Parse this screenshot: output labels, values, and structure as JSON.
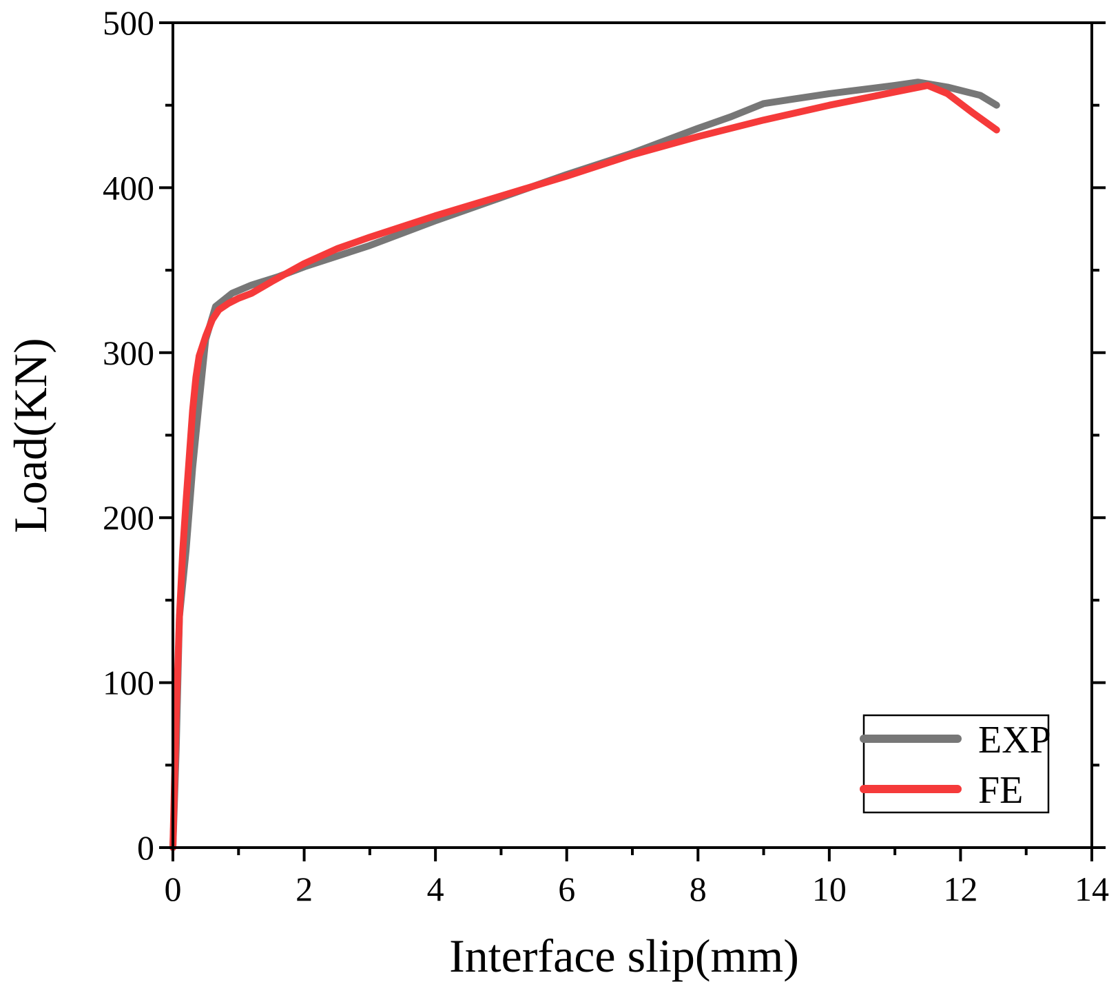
{
  "chart_data": {
    "type": "line",
    "title": "",
    "xlabel": "Interface slip(mm)",
    "ylabel": "Load(KN)",
    "xlim": [
      0,
      14
    ],
    "ylim": [
      0,
      500
    ],
    "xticks": [
      0,
      2,
      4,
      6,
      8,
      10,
      12,
      14
    ],
    "yticks": [
      0,
      100,
      200,
      300,
      400,
      500
    ],
    "grid": false,
    "legend_position": "bottom-right",
    "series": [
      {
        "name": "EXP",
        "color": "#777777",
        "x": [
          0,
          0.05,
          0.1,
          0.2,
          0.3,
          0.4,
          0.5,
          0.65,
          0.9,
          1.2,
          1.6,
          2.0,
          3.0,
          4.0,
          5.0,
          6.0,
          7.0,
          8.0,
          8.5,
          9.0,
          10.0,
          11.0,
          11.35,
          11.8,
          12.3,
          12.55
        ],
        "y": [
          0,
          60,
          140,
          180,
          230,
          270,
          308,
          328,
          336,
          341,
          346,
          352,
          365,
          380,
          394,
          408,
          421,
          436,
          443,
          451,
          457,
          462,
          464,
          461,
          456,
          450
        ]
      },
      {
        "name": "FE",
        "color": "#f53a3a",
        "x": [
          0,
          0.05,
          0.1,
          0.15,
          0.2,
          0.3,
          0.35,
          0.4,
          0.5,
          0.6,
          0.7,
          0.85,
          1.0,
          1.2,
          1.5,
          2.0,
          2.5,
          3.0,
          4.0,
          5.0,
          6.0,
          7.0,
          8.0,
          9.0,
          10.0,
          11.0,
          11.5,
          11.8,
          12.2,
          12.55
        ],
        "y": [
          0,
          80,
          140,
          180,
          210,
          265,
          285,
          298,
          310,
          320,
          326,
          330,
          333,
          336,
          343,
          354,
          363,
          370,
          383,
          395,
          407,
          420,
          431,
          441,
          450,
          458,
          462,
          457,
          445,
          435
        ]
      }
    ]
  }
}
